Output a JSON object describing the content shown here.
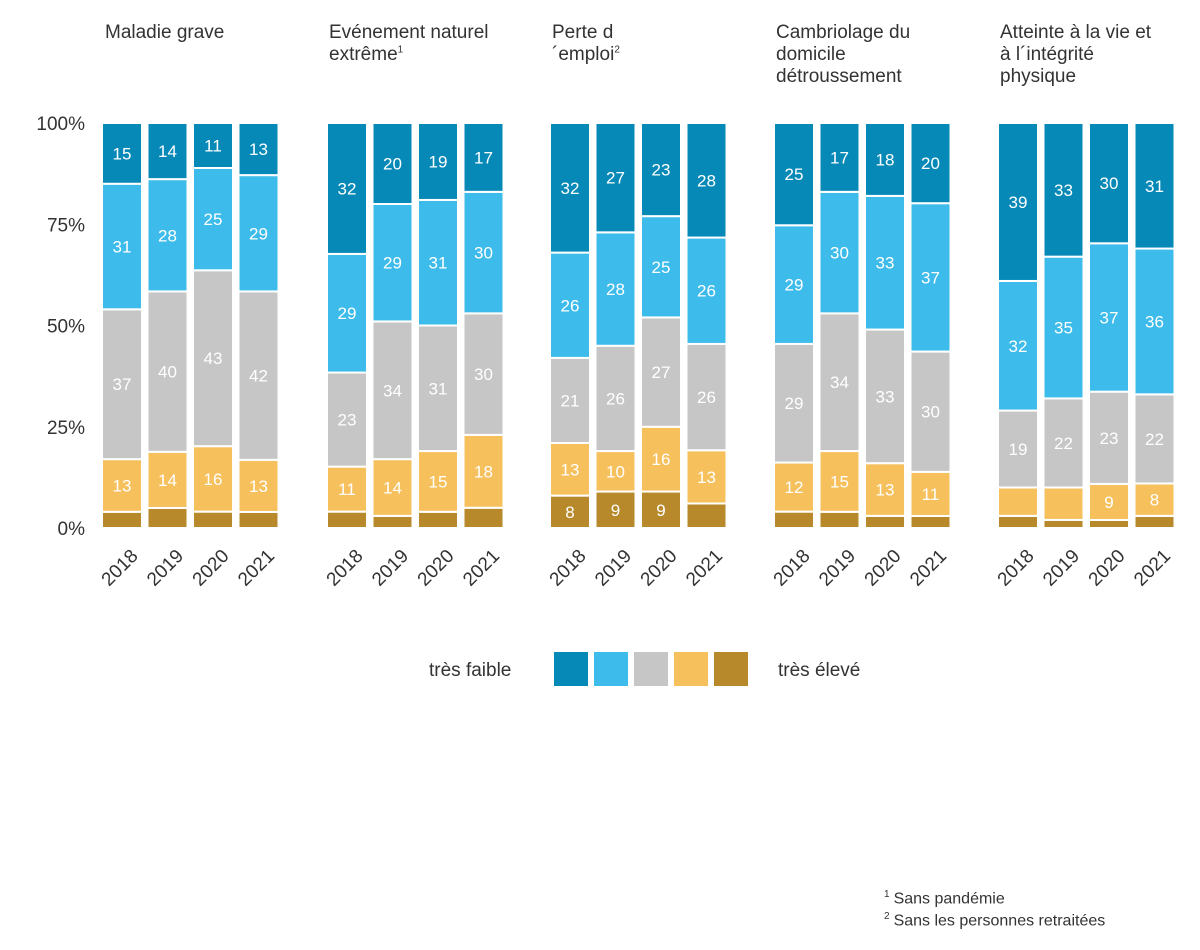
{
  "chart_data": {
    "type": "stacked_bar",
    "ylabel": "",
    "ylim": [
      0,
      100
    ],
    "y_ticks": [
      "0%",
      "25%",
      "50%",
      "75%",
      "100%"
    ],
    "stack_order_bottom_to_top": [
      "très élevé",
      "level_4",
      "level_3",
      "level_2",
      "très faible"
    ],
    "colors": [
      "#b7892a",
      "#f6c05c",
      "#c6c6c6",
      "#3dbbea",
      "#0689b7"
    ],
    "label_colors": [
      "#ffffff",
      "#ffffff",
      "#ffffff",
      "#ffffff",
      "#ffffff"
    ],
    "panels": [
      {
        "title": "Maladie grave",
        "footnote_ref": "",
        "categories": [
          "2018",
          "2019",
          "2020",
          "2021"
        ],
        "segments": [
          [
            4,
            13,
            37,
            31,
            15
          ],
          [
            5,
            14,
            40,
            28,
            14
          ],
          [
            4,
            16,
            43,
            25,
            11
          ],
          [
            4,
            13,
            42,
            29,
            13
          ]
        ],
        "labels": [
          [
            "",
            "13",
            "37",
            "31",
            "15"
          ],
          [
            "",
            "14",
            "40",
            "28",
            "14"
          ],
          [
            "",
            "16",
            "43",
            "25",
            "11"
          ],
          [
            "",
            "13",
            "42",
            "29",
            "13"
          ]
        ]
      },
      {
        "title": "Evénement naturel extrême",
        "footnote_ref": "1",
        "categories": [
          "2018",
          "2019",
          "2020",
          "2021"
        ],
        "segments": [
          [
            4,
            11,
            23,
            29,
            32
          ],
          [
            3,
            14,
            34,
            29,
            20
          ],
          [
            4,
            15,
            31,
            31,
            19
          ],
          [
            5,
            18,
            30,
            30,
            17
          ]
        ],
        "labels": [
          [
            "",
            "11",
            "23",
            "29",
            "32"
          ],
          [
            "",
            "14",
            "34",
            "29",
            "20"
          ],
          [
            "",
            "15",
            "31",
            "31",
            "19"
          ],
          [
            "",
            "18",
            "30",
            "30",
            "17"
          ]
        ]
      },
      {
        "title": "Perte d´emploi",
        "footnote_ref": "2",
        "categories": [
          "2018",
          "2019",
          "2020",
          "2021"
        ],
        "segments": [
          [
            8,
            13,
            21,
            26,
            32
          ],
          [
            9,
            10,
            26,
            28,
            27
          ],
          [
            9,
            16,
            27,
            25,
            23
          ],
          [
            6,
            13,
            26,
            26,
            28
          ]
        ],
        "labels": [
          [
            "8",
            "13",
            "21",
            "26",
            "32"
          ],
          [
            "9",
            "10",
            "26",
            "28",
            "27"
          ],
          [
            "9",
            "16",
            "27",
            "25",
            "23"
          ],
          [
            "",
            "13",
            "26",
            "26",
            "28"
          ]
        ]
      },
      {
        "title": "Cambriolage du domicile détroussement",
        "footnote_ref": "",
        "categories": [
          "2018",
          "2019",
          "2020",
          "2021"
        ],
        "segments": [
          [
            4,
            12,
            29,
            29,
            25
          ],
          [
            4,
            15,
            34,
            30,
            17
          ],
          [
            3,
            13,
            33,
            33,
            18
          ],
          [
            3,
            11,
            30,
            37,
            20
          ]
        ],
        "labels": [
          [
            "",
            "12",
            "29",
            "29",
            "25"
          ],
          [
            "",
            "15",
            "34",
            "30",
            "17"
          ],
          [
            "",
            "13",
            "33",
            "33",
            "18"
          ],
          [
            "",
            "11",
            "30",
            "37",
            "20"
          ]
        ]
      },
      {
        "title": "Atteinte à la vie et à l´intégrité physique",
        "footnote_ref": "",
        "categories": [
          "2018",
          "2019",
          "2020",
          "2021"
        ],
        "segments": [
          [
            3,
            7,
            19,
            32,
            39
          ],
          [
            2,
            8,
            22,
            35,
            33
          ],
          [
            2,
            9,
            23,
            37,
            30
          ],
          [
            3,
            8,
            22,
            36,
            31
          ]
        ],
        "labels": [
          [
            "",
            "",
            "19",
            "32",
            "39"
          ],
          [
            "",
            "",
            "22",
            "35",
            "33"
          ],
          [
            "",
            "9",
            "23",
            "37",
            "30"
          ],
          [
            "",
            "8",
            "22",
            "36",
            "31"
          ]
        ]
      }
    ],
    "legend": {
      "low_label": "très faible",
      "high_label": "très élevé",
      "order_left_to_right": [
        "#0689b7",
        "#3dbbea",
        "#c6c6c6",
        "#f6c05c",
        "#b7892a"
      ]
    }
  },
  "footnotes": [
    {
      "marker": "1",
      "text": "Sans pandémie"
    },
    {
      "marker": "2",
      "text": "Sans les personnes retraitées"
    }
  ]
}
